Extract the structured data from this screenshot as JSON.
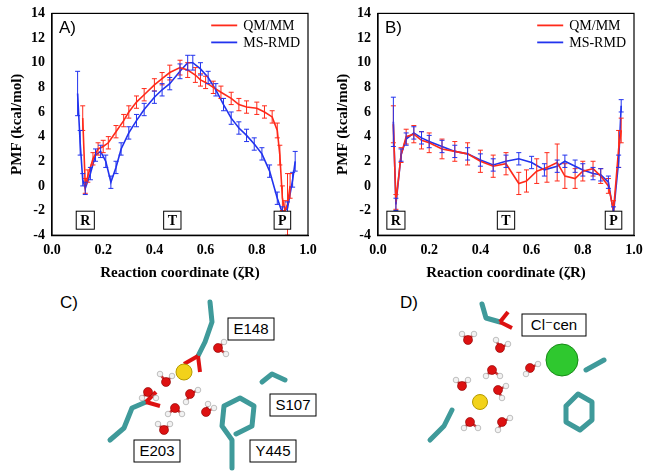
{
  "chart_data": [
    {
      "type": "line",
      "panel": "A)",
      "x_label": "Reaction coordinate (ζR)",
      "y_label": "PMF (kcal/mol)",
      "xlim": [
        0.0,
        1.0
      ],
      "xticks": [
        {
          "value": 0.0,
          "label": "0.0"
        },
        0.2,
        0.4,
        0.6,
        0.8,
        {
          "value": 1.0,
          "label": "1.0"
        }
      ],
      "ylim": [
        -4,
        14
      ],
      "yticks": [
        -4,
        -2,
        0,
        2,
        4,
        6,
        8,
        10,
        12,
        14
      ],
      "grid": false,
      "legend": "upper right",
      "annotations": [
        {
          "text": "R",
          "x": 0.13
        },
        {
          "text": "T",
          "x": 0.47
        },
        {
          "text": "P",
          "x": 0.9
        }
      ],
      "series": [
        {
          "name": "QM/MM",
          "color": "#ff2a1a",
          "x": [
            0.12,
            0.13,
            0.14,
            0.16,
            0.18,
            0.2,
            0.22,
            0.25,
            0.28,
            0.3,
            0.33,
            0.36,
            0.4,
            0.43,
            0.46,
            0.5,
            0.53,
            0.56,
            0.58,
            0.6,
            0.63,
            0.66,
            0.7,
            0.73,
            0.76,
            0.8,
            0.83,
            0.86,
            0.88,
            0.89,
            0.9,
            0.91,
            0.92,
            0.93
          ],
          "values": [
            5.5,
            0.0,
            0.8,
            2.2,
            3.0,
            3.2,
            3.5,
            4.4,
            5.3,
            6.0,
            6.8,
            7.4,
            8.2,
            8.7,
            9.2,
            9.6,
            9.4,
            9.0,
            8.6,
            8.4,
            8.0,
            7.6,
            7.1,
            6.6,
            6.4,
            6.3,
            6.0,
            5.6,
            4.5,
            2.5,
            -1.0,
            -2.0,
            -1.5,
            0.0
          ],
          "errors": [
            1.0,
            0.6,
            0.5,
            0.5,
            0.5,
            0.5,
            0.5,
            0.5,
            0.5,
            0.5,
            0.5,
            0.5,
            0.5,
            0.5,
            0.6,
            0.6,
            0.6,
            0.6,
            0.5,
            0.5,
            0.5,
            0.5,
            0.5,
            0.5,
            0.5,
            0.5,
            0.5,
            0.5,
            0.6,
            0.8,
            1.0,
            0.8,
            2.5,
            1.0
          ]
        },
        {
          "name": "MS-RMD",
          "color": "#2233ee",
          "x": [
            0.1,
            0.11,
            0.12,
            0.13,
            0.15,
            0.17,
            0.19,
            0.21,
            0.23,
            0.25,
            0.27,
            0.3,
            0.33,
            0.36,
            0.4,
            0.43,
            0.46,
            0.5,
            0.53,
            0.55,
            0.58,
            0.61,
            0.64,
            0.67,
            0.7,
            0.73,
            0.76,
            0.79,
            0.82,
            0.85,
            0.88,
            0.9,
            0.92,
            0.94,
            0.95
          ],
          "values": [
            7.5,
            3.5,
            0.5,
            -0.2,
            1.0,
            2.5,
            2.8,
            2.0,
            0.3,
            1.5,
            3.0,
            4.3,
            5.3,
            6.2,
            7.2,
            7.8,
            8.3,
            9.3,
            10.0,
            10.0,
            9.5,
            8.8,
            7.8,
            6.6,
            5.5,
            4.7,
            4.1,
            3.4,
            2.6,
            1.2,
            -1.0,
            -2.2,
            -1.8,
            0.5,
            2.0
          ],
          "errors": [
            1.8,
            1.0,
            0.5,
            0.5,
            0.5,
            0.5,
            0.5,
            0.5,
            0.5,
            0.5,
            0.5,
            0.5,
            0.5,
            0.5,
            0.5,
            0.5,
            0.5,
            0.6,
            0.6,
            0.6,
            0.5,
            0.5,
            0.5,
            0.5,
            0.5,
            0.5,
            0.5,
            0.5,
            0.5,
            0.5,
            0.5,
            0.5,
            0.5,
            0.6,
            0.8
          ]
        }
      ]
    },
    {
      "type": "line",
      "panel": "B)",
      "x_label": "Reaction coordinate (ζR)",
      "y_label": "PMF (kcal/mol)",
      "xlim": [
        0.0,
        1.0
      ],
      "xticks": [
        {
          "value": 0.0,
          "label": "0.0"
        },
        0.2,
        0.4,
        0.6,
        0.8,
        {
          "value": 1.0,
          "label": "1.0"
        }
      ],
      "ylim": [
        -4,
        14
      ],
      "yticks": [
        -4,
        -2,
        0,
        2,
        4,
        6,
        8,
        10,
        12,
        14
      ],
      "grid": false,
      "legend": "upper right",
      "annotations": [
        {
          "text": "R",
          "x": 0.07
        },
        {
          "text": "T",
          "x": 0.5
        },
        {
          "text": "P",
          "x": 0.92
        }
      ],
      "series": [
        {
          "name": "QM/MM",
          "color": "#ff2a1a",
          "x": [
            0.06,
            0.07,
            0.09,
            0.11,
            0.14,
            0.17,
            0.2,
            0.25,
            0.3,
            0.35,
            0.4,
            0.45,
            0.5,
            0.55,
            0.58,
            0.62,
            0.66,
            0.7,
            0.73,
            0.77,
            0.8,
            0.84,
            0.87,
            0.9,
            0.92,
            0.94,
            0.95
          ],
          "values": [
            5.0,
            -1.3,
            2.5,
            4.0,
            4.2,
            3.7,
            3.5,
            3.0,
            2.8,
            2.6,
            2.0,
            1.6,
            1.8,
            0.2,
            0.4,
            1.2,
            1.5,
            1.9,
            0.8,
            0.6,
            1.2,
            1.4,
            0.8,
            0.0,
            -2.0,
            3.0,
            4.5
          ],
          "errors": [
            1.5,
            0.6,
            0.6,
            0.6,
            0.7,
            0.7,
            0.8,
            0.8,
            0.8,
            0.9,
            0.9,
            0.9,
            0.9,
            0.9,
            0.9,
            1.0,
            1.2,
            1.5,
            1.0,
            0.8,
            0.8,
            0.6,
            0.6,
            0.6,
            0.8,
            1.5,
            1.0
          ]
        },
        {
          "name": "MS-RMD",
          "color": "#2233ee",
          "x": [
            0.06,
            0.07,
            0.09,
            0.11,
            0.14,
            0.17,
            0.2,
            0.25,
            0.3,
            0.35,
            0.4,
            0.45,
            0.5,
            0.55,
            0.6,
            0.65,
            0.7,
            0.73,
            0.77,
            0.8,
            0.84,
            0.87,
            0.9,
            0.92,
            0.94,
            0.95
          ],
          "values": [
            5.2,
            -1.5,
            2.5,
            3.8,
            4.3,
            3.9,
            3.6,
            3.2,
            2.8,
            2.6,
            2.1,
            1.7,
            2.0,
            2.2,
            1.9,
            1.3,
            1.6,
            2.0,
            1.6,
            1.3,
            1.0,
            0.9,
            0.3,
            -2.2,
            2.0,
            6.5
          ],
          "errors": [
            2.0,
            0.5,
            0.5,
            0.5,
            0.5,
            0.5,
            0.5,
            0.5,
            0.5,
            0.5,
            0.5,
            0.5,
            0.5,
            0.5,
            0.5,
            0.5,
            0.5,
            0.5,
            0.5,
            0.5,
            0.5,
            0.5,
            0.5,
            0.5,
            0.5,
            0.5
          ]
        }
      ]
    }
  ],
  "structures": [
    {
      "panel": "C)",
      "labels": [
        "E148",
        "S107",
        "E203",
        "Y445"
      ]
    },
    {
      "panel": "D)",
      "labels": [
        "Cl⁻cen"
      ]
    }
  ]
}
